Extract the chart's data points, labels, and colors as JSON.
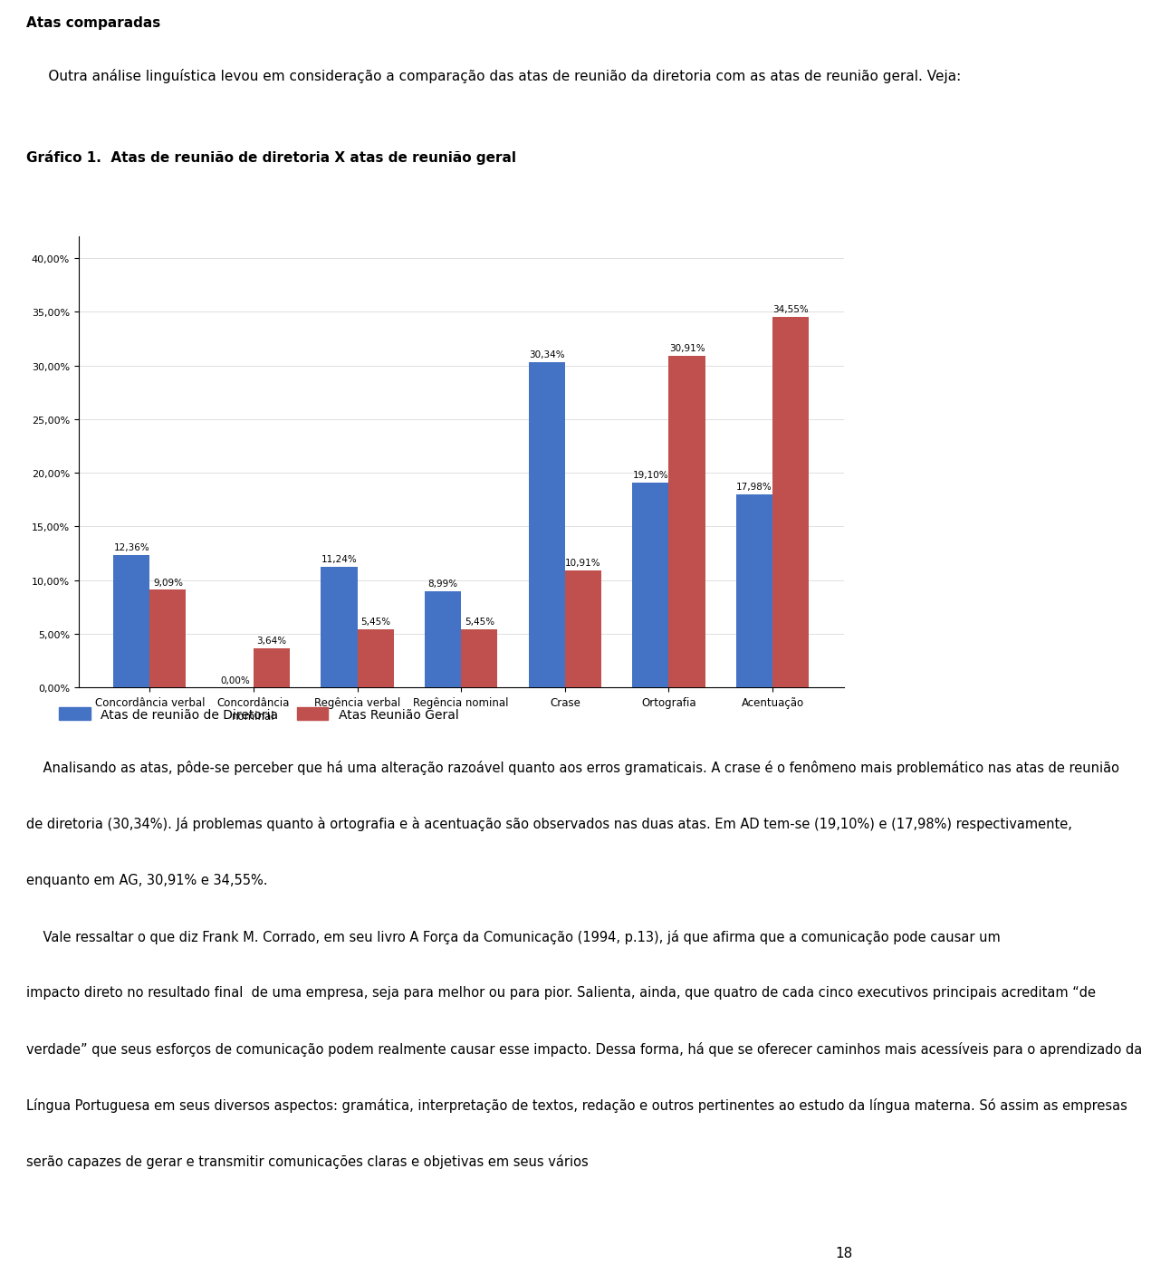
{
  "categories": [
    "Concordância verbal",
    "Concordância\nnominal",
    "Regência verbal",
    "Regência nominal",
    "Crase",
    "Ortografia",
    "Acentuação"
  ],
  "diretoria": [
    12.36,
    0.0,
    11.24,
    8.99,
    30.34,
    19.1,
    17.98
  ],
  "geral": [
    9.09,
    3.64,
    5.45,
    5.45,
    10.91,
    30.91,
    34.55
  ],
  "diretoria_labels": [
    "12,36%",
    "0,00%",
    "11,24%",
    "8,99%",
    "30,34%",
    "19,10%",
    "17,98%"
  ],
  "geral_labels": [
    "9,09%",
    "3,64%",
    "5,45%",
    "5,45%",
    "10,91%",
    "30,91%",
    "34,55%"
  ],
  "color_diretoria": "#4472C4",
  "color_geral": "#C0504D",
  "legend_diretoria": "Atas de reunião de Diretoria",
  "legend_geral": "Atas Reunião Geral",
  "yticks": [
    0.0,
    5.0,
    10.0,
    15.0,
    20.0,
    25.0,
    30.0,
    35.0,
    40.0
  ],
  "ytick_labels": [
    "0,00%",
    "5,00%",
    "10,00%",
    "15,00%",
    "20,00%",
    "25,00%",
    "30,00%",
    "35,00%",
    "40,00%"
  ],
  "title_text": "Gráfico 1.  Atas de reunião de diretoria X atas de reunião geral",
  "header_bold": "Atas comparadas",
  "header_para": "     Outra análise linguística levou em consideração a comparação das atas de reunião da diretoria com as atas de reunião geral. Veja:",
  "page_number": "18",
  "bar_width": 0.35,
  "ylim": [
    0,
    42
  ],
  "fig_width": 9.6,
  "fig_height": 14.02,
  "body_lines": [
    "    Analisando as atas, pôde-se perceber que há uma alteração razoável quanto aos erros gramaticais. A crase é o fenômeno mais problemático nas atas de reunião",
    "de diretoria (30,34%). Já problemas quanto à ortografia e à acentuação são observados nas duas atas. Em AD tem-se (19,10%) e (17,98%) respectivamente,",
    "enquanto em AG, 30,91% e 34,55%.",
    "    Vale ressaltar o que diz Frank M. Corrado, em seu livro A Força da Comunicação (1994, p.13), já que afirma que a comunicação pode causar um",
    "impacto direto no resultado final  de uma empresa, seja para melhor ou para pior. Salienta, ainda, que quatro de cada cinco executivos principais acreditam “de",
    "verdade” que seus esforços de comunicação podem realmente causar esse impacto. Dessa forma, há que se oferecer caminhos mais acessíveis para o aprendizado da",
    "Língua Portuguesa em seus diversos aspectos: gramática, interpretação de textos, redação e outros pertinentes ao estudo da língua materna. Só assim as empresas",
    "serão capazes de gerar e transmitir comunicações claras e objetivas em seus vários"
  ]
}
